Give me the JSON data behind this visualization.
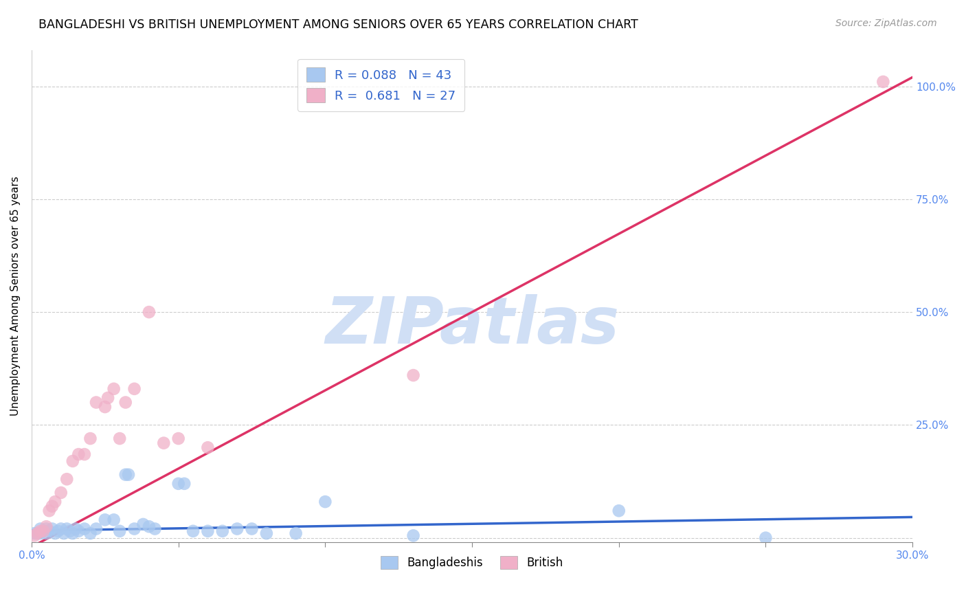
{
  "title": "BANGLADESHI VS BRITISH UNEMPLOYMENT AMONG SENIORS OVER 65 YEARS CORRELATION CHART",
  "source": "Source: ZipAtlas.com",
  "ylabel": "Unemployment Among Seniors over 65 years",
  "xlim": [
    0.0,
    0.3
  ],
  "ylim": [
    -0.01,
    1.08
  ],
  "xticks": [
    0.0,
    0.05,
    0.1,
    0.15,
    0.2,
    0.25,
    0.3
  ],
  "xtick_labels": [
    "0.0%",
    "",
    "",
    "",
    "",
    "",
    "30.0%"
  ],
  "yticks": [
    0.0,
    0.25,
    0.5,
    0.75,
    1.0
  ],
  "ytick_labels": [
    "",
    "25.0%",
    "50.0%",
    "75.0%",
    "100.0%"
  ],
  "bangladeshi_color": "#a8c8f0",
  "british_color": "#f0b0c8",
  "bangladeshi_line_color": "#3366cc",
  "british_line_color": "#dd3366",
  "R_bangladeshi": 0.088,
  "N_bangladeshi": 43,
  "R_british": 0.681,
  "N_british": 27,
  "watermark": "ZIPatlas",
  "watermark_color": "#d0dff5",
  "legend_labels": [
    "Bangladeshis",
    "British"
  ],
  "bangladeshi_x": [
    0.001,
    0.002,
    0.003,
    0.003,
    0.004,
    0.005,
    0.005,
    0.006,
    0.007,
    0.008,
    0.009,
    0.01,
    0.011,
    0.012,
    0.013,
    0.014,
    0.015,
    0.016,
    0.018,
    0.02,
    0.022,
    0.025,
    0.028,
    0.03,
    0.032,
    0.033,
    0.035,
    0.038,
    0.04,
    0.042,
    0.05,
    0.052,
    0.055,
    0.06,
    0.065,
    0.07,
    0.075,
    0.08,
    0.09,
    0.1,
    0.13,
    0.2,
    0.25
  ],
  "bangladeshi_y": [
    0.01,
    0.01,
    0.01,
    0.02,
    0.015,
    0.01,
    0.02,
    0.015,
    0.02,
    0.01,
    0.015,
    0.02,
    0.01,
    0.02,
    0.015,
    0.01,
    0.02,
    0.015,
    0.02,
    0.01,
    0.02,
    0.04,
    0.04,
    0.015,
    0.14,
    0.14,
    0.02,
    0.03,
    0.025,
    0.02,
    0.12,
    0.12,
    0.015,
    0.015,
    0.015,
    0.02,
    0.02,
    0.01,
    0.01,
    0.08,
    0.005,
    0.06,
    0.0
  ],
  "british_x": [
    0.001,
    0.002,
    0.003,
    0.004,
    0.005,
    0.006,
    0.007,
    0.008,
    0.01,
    0.012,
    0.014,
    0.016,
    0.018,
    0.02,
    0.022,
    0.025,
    0.026,
    0.028,
    0.03,
    0.032,
    0.035,
    0.04,
    0.045,
    0.05,
    0.06,
    0.13,
    0.29
  ],
  "british_y": [
    0.005,
    0.01,
    0.015,
    0.015,
    0.025,
    0.06,
    0.07,
    0.08,
    0.1,
    0.13,
    0.17,
    0.185,
    0.185,
    0.22,
    0.3,
    0.29,
    0.31,
    0.33,
    0.22,
    0.3,
    0.33,
    0.5,
    0.21,
    0.22,
    0.2,
    0.36,
    1.01
  ],
  "british_line_x0": 0.0,
  "british_line_y0": -0.02,
  "british_line_x1": 0.3,
  "british_line_y1": 1.02,
  "bangladeshi_line_x0": 0.0,
  "bangladeshi_line_y0": 0.016,
  "bangladeshi_line_x1": 0.3,
  "bangladeshi_line_y1": 0.046
}
